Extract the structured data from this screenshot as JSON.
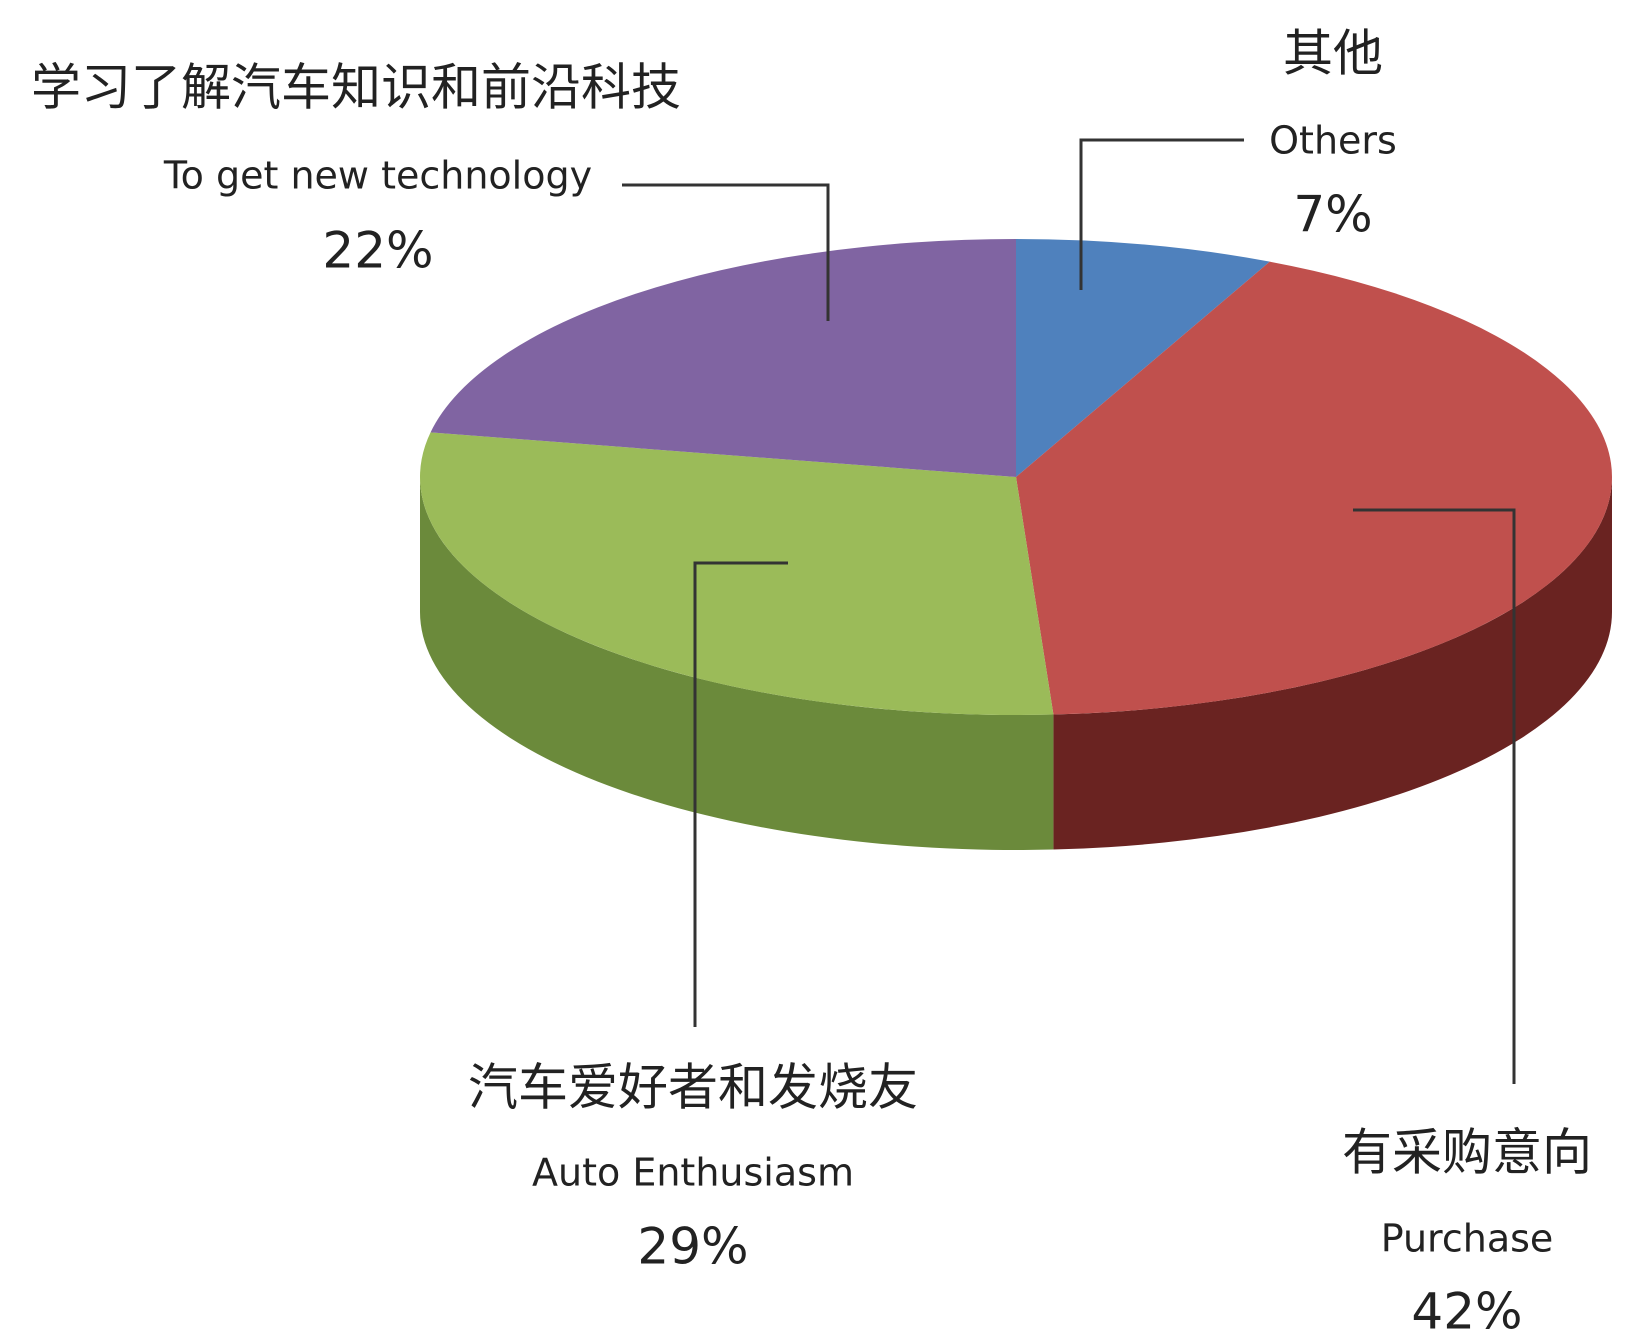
{
  "chart_data": {
    "type": "pie3d",
    "categories": [
      "其他",
      "有采购意向",
      "汽车爱好者和发烧友",
      "学习了解汽车知识和前沿科技"
    ],
    "categories_en": [
      "Others",
      "Purchase",
      "Auto Enthusiasm",
      "To get new technology"
    ],
    "values": [
      7,
      42,
      29,
      22
    ],
    "value_labels": [
      "7%",
      "42%",
      "29%",
      "22%"
    ],
    "colors": [
      "#4f81bd",
      "#c0504d",
      "#9bbb59",
      "#8064a2"
    ],
    "side_colors": [
      "#34557d",
      "#6a2321",
      "#6b8a3b",
      "#574370"
    ]
  }
}
